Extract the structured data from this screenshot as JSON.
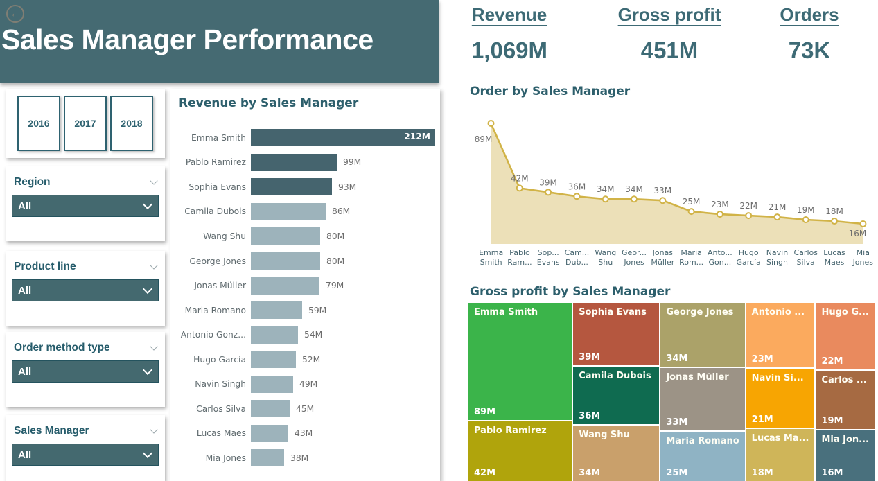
{
  "header": {
    "title": "Sales Manager Performance",
    "back_icon": "back-arrow"
  },
  "kpis": [
    {
      "label": "Revenue",
      "value": "1,069M"
    },
    {
      "label": "Gross profit",
      "value": "451M"
    },
    {
      "label": "Orders",
      "value": "73K"
    }
  ],
  "year_slicer": {
    "years": [
      "2016",
      "2017",
      "2018"
    ]
  },
  "filters": [
    {
      "label": "Region",
      "value": "All"
    },
    {
      "label": "Product line",
      "value": "All"
    },
    {
      "label": "Order method type",
      "value": "All"
    },
    {
      "label": "Sales Manager",
      "value": "All"
    }
  ],
  "colors": {
    "header_bg": "#456a72",
    "accent_teal": "#2d5f6c",
    "dropdown_bg": "#44696f",
    "bar_highlight": "#45646e",
    "bar_default": "#9db3bb",
    "line": "#d1b347",
    "area_fill": "#ece0b8"
  },
  "chart_data": [
    {
      "type": "bar",
      "title": "Revenue by Sales Manager",
      "orientation": "horizontal",
      "categories": [
        "Emma Smith",
        "Pablo Ramirez",
        "Sophia Evans",
        "Camila Dubois",
        "Wang Shu",
        "George Jones",
        "Jonas Müller",
        "Maria Romano",
        "Antonio Gonz...",
        "Hugo García",
        "Navin Singh",
        "Carlos Silva",
        "Lucas Maes",
        "Mia Jones"
      ],
      "values": [
        212,
        99,
        93,
        86,
        80,
        80,
        79,
        59,
        54,
        52,
        49,
        45,
        43,
        38
      ],
      "value_labels": [
        "212M",
        "99M",
        "93M",
        "86M",
        "80M",
        "80M",
        "79M",
        "59M",
        "54M",
        "52M",
        "49M",
        "45M",
        "43M",
        "38M"
      ],
      "unit": "M",
      "xlim": [
        0,
        212
      ],
      "highlight_indices": [
        0,
        1,
        2
      ],
      "grid": false
    },
    {
      "type": "area",
      "title": "Order by Sales Manager",
      "x_tick_labels": [
        "Emma\nSmith",
        "Pablo\nRam...",
        "Sop...\nEvans",
        "Cam...\nDub...",
        "Wang\nShu",
        "Geor...\nJones",
        "Jonas\nMüller",
        "Maria\nRom...",
        "Anto...\nGon...",
        "Hugo\nGarcía",
        "Navin\nSingh",
        "Carlos\nSilva",
        "Lucas\nMaes",
        "Mia\nJones"
      ],
      "values": [
        89,
        42,
        39,
        36,
        34,
        34,
        33,
        25,
        23,
        22,
        21,
        19,
        18,
        16
      ],
      "value_labels": [
        "89M",
        "42M",
        "39M",
        "36M",
        "34M",
        "34M",
        "33M",
        "25M",
        "23M",
        "22M",
        "21M",
        "19M",
        "18M",
        "16M"
      ],
      "unit": "M",
      "ylim": [
        0,
        95
      ],
      "grid": false,
      "markers": true
    },
    {
      "type": "treemap",
      "title": "Gross profit by Sales Manager",
      "unit": "M",
      "columns": [
        {
          "cells": [
            {
              "name": "Emma Smith",
              "value": 89,
              "value_label": "89M",
              "color": "#3bb44a"
            },
            {
              "name": "Pablo Ramirez",
              "value": 42,
              "value_label": "42M",
              "color": "#b0a40c"
            }
          ]
        },
        {
          "cells": [
            {
              "name": "Sophia Evans",
              "value": 39,
              "value_label": "39M",
              "color": "#b5573f"
            },
            {
              "name": "Camila Dubois",
              "value": 36,
              "value_label": "36M",
              "color": "#0f6b50"
            },
            {
              "name": "Wang Shu",
              "value": 34,
              "value_label": "34M",
              "color": "#c9a06b"
            }
          ]
        },
        {
          "cells": [
            {
              "name": "George Jones",
              "value": 34,
              "value_label": "34M",
              "color": "#aba269"
            },
            {
              "name": "Jonas Müller",
              "value": 33,
              "value_label": "33M",
              "color": "#9c9386"
            },
            {
              "name": "Maria Romano",
              "value": 25,
              "value_label": "25M",
              "color": "#8fb3c4"
            }
          ]
        },
        {
          "cells": [
            {
              "name": "Antonio ...",
              "value": 23,
              "value_label": "23M",
              "color": "#fbaa5e"
            },
            {
              "name": "Navin Si...",
              "value": 21,
              "value_label": "21M",
              "color": "#f7a502"
            },
            {
              "name": "Lucas Ma...",
              "value": 18,
              "value_label": "18M",
              "color": "#cfb559"
            }
          ]
        },
        {
          "cells": [
            {
              "name": "Hugo G...",
              "value": 22,
              "value_label": "22M",
              "color": "#e98a5e"
            },
            {
              "name": "Carlos ...",
              "value": 19,
              "value_label": "19M",
              "color": "#a66a42"
            },
            {
              "name": "Mia Jon...",
              "value": 16,
              "value_label": "16M",
              "color": "#49707d"
            }
          ]
        }
      ]
    }
  ]
}
